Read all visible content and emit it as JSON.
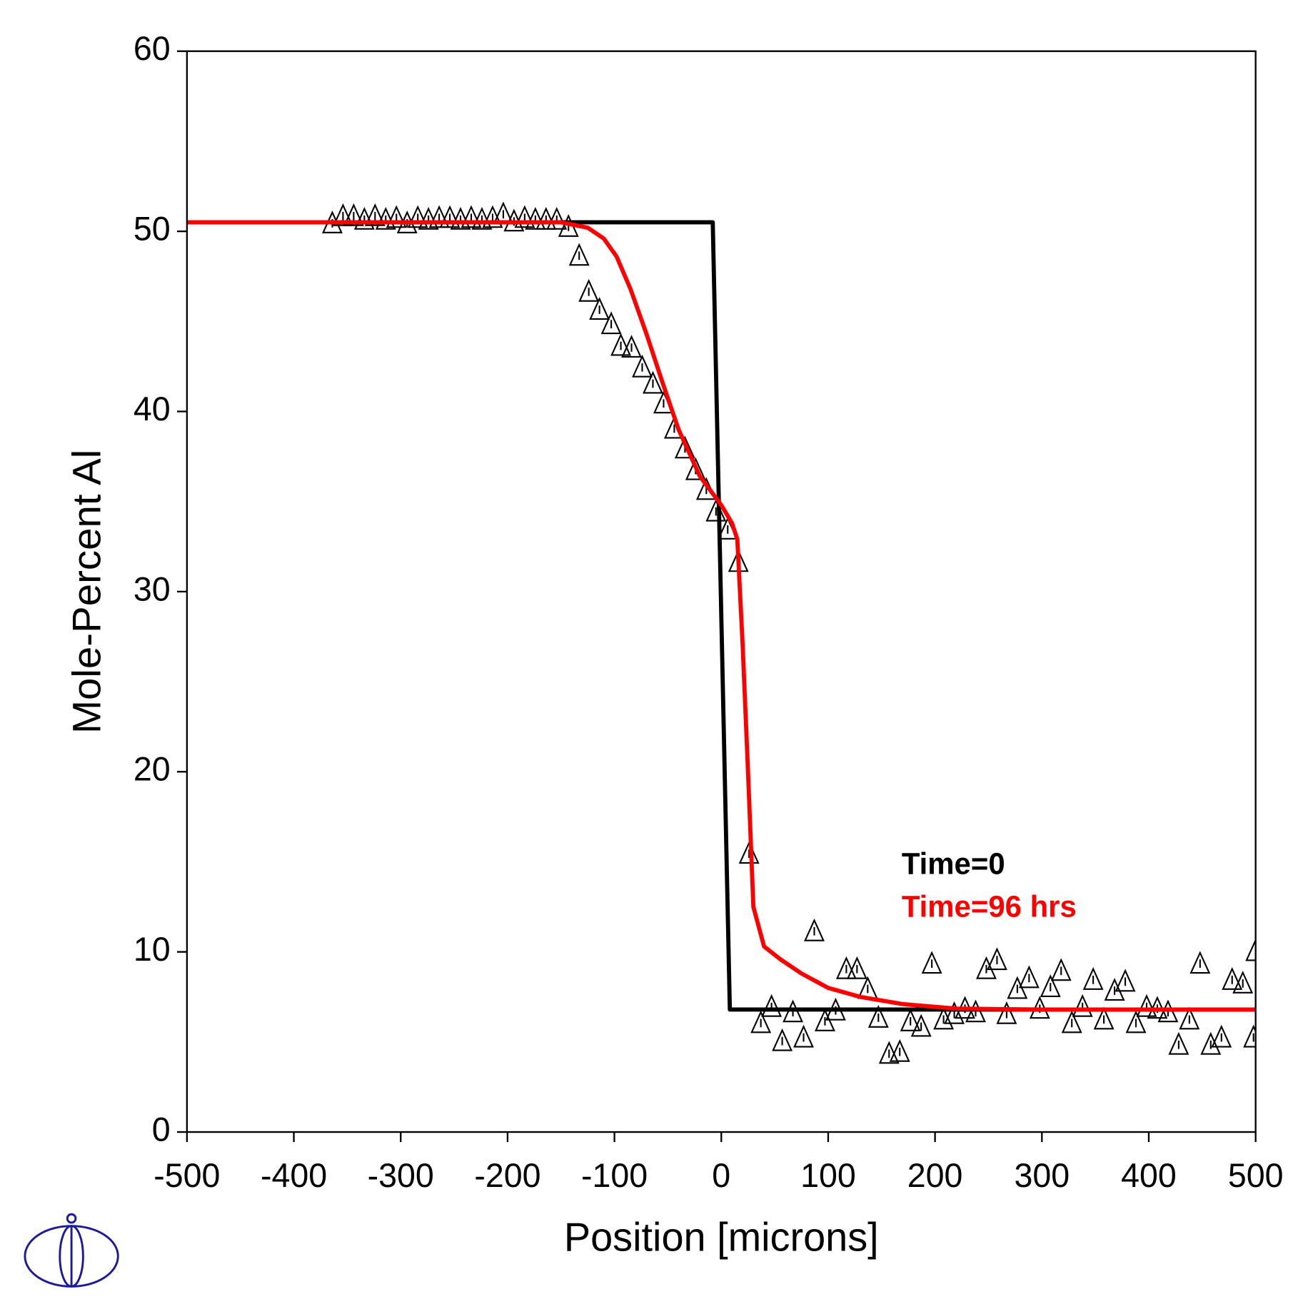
{
  "chart_data": {
    "type": "line",
    "xlabel": "Position [microns]",
    "ylabel": "Mole-Percent Al",
    "xlim": [
      -500,
      500
    ],
    "xticks": [
      -500,
      -400,
      -300,
      -200,
      -100,
      0,
      100,
      200,
      300,
      400,
      500
    ],
    "ylim": [
      0,
      60
    ],
    "yticks": [
      0,
      10,
      20,
      30,
      40,
      50,
      60
    ],
    "series": [
      {
        "name": "Time=0",
        "color": "#000000",
        "x": [
          -500,
          -8,
          8,
          500
        ],
        "values": [
          50.5,
          50.5,
          6.8,
          6.8
        ]
      },
      {
        "name": "Time=96 hrs",
        "color": "#ff0000",
        "x": [
          -500,
          -150,
          -125,
          -110,
          -98,
          -85,
          -70,
          -55,
          -40,
          -20,
          0,
          10,
          15,
          20,
          25,
          30,
          40,
          55,
          75,
          100,
          130,
          170,
          220,
          300,
          500
        ],
        "values": [
          50.5,
          50.5,
          50.2,
          49.6,
          48.6,
          46.8,
          44.3,
          41.6,
          39.0,
          36.4,
          34.8,
          33.8,
          32.9,
          27,
          20,
          12.5,
          10.3,
          9.6,
          8.8,
          8.0,
          7.5,
          7.1,
          6.85,
          6.8,
          6.8
        ]
      }
    ],
    "scatter": {
      "color": "#000000",
      "marker": "triangle",
      "x": [
        -364,
        -354,
        -344,
        -334,
        -324,
        -314,
        -304,
        -294,
        -284,
        -274,
        -264,
        -254,
        -244,
        -234,
        -224,
        -214,
        -204,
        -194,
        -184,
        -174,
        -164,
        -154,
        -143,
        -133,
        -124,
        -114,
        -103,
        -94,
        -84,
        -74,
        -64,
        -54,
        -44,
        -34,
        -24,
        -14,
        -5,
        6,
        16,
        26,
        37,
        47,
        57,
        67,
        77,
        87,
        97,
        107,
        117,
        127,
        137,
        147,
        157,
        167,
        177,
        187,
        197,
        208,
        218,
        228,
        238,
        248,
        258,
        267,
        277,
        288,
        298,
        308,
        318,
        328,
        338,
        348,
        358,
        368,
        378,
        388,
        398,
        408,
        418,
        428,
        438,
        448,
        458,
        468,
        478,
        488,
        498,
        500
      ],
      "values": [
        50.4,
        50.8,
        50.8,
        50.6,
        50.8,
        50.6,
        50.7,
        50.4,
        50.7,
        50.6,
        50.7,
        50.7,
        50.6,
        50.7,
        50.6,
        50.7,
        50.9,
        50.5,
        50.7,
        50.6,
        50.6,
        50.6,
        50.2,
        48.6,
        46.6,
        45.6,
        44.8,
        43.6,
        43.5,
        42.4,
        41.5,
        40.4,
        39.0,
        37.9,
        36.7,
        35.6,
        34.4,
        33.4,
        31.6,
        15.4,
        6.0,
        6.9,
        5.0,
        6.6,
        5.2,
        11.1,
        6.1,
        6.7,
        9.0,
        9.0,
        7.9,
        6.3,
        4.3,
        4.4,
        6.1,
        5.8,
        9.3,
        6.2,
        6.5,
        6.8,
        6.6,
        9.0,
        9.5,
        6.5,
        7.9,
        8.5,
        6.8,
        8.0,
        8.9,
        6.0,
        6.9,
        8.4,
        6.2,
        7.8,
        8.3,
        6.0,
        6.9,
        6.8,
        6.6,
        4.8,
        6.2,
        9.3,
        4.8,
        5.2,
        8.4,
        8.2,
        5.2,
        10.0
      ]
    }
  }
}
